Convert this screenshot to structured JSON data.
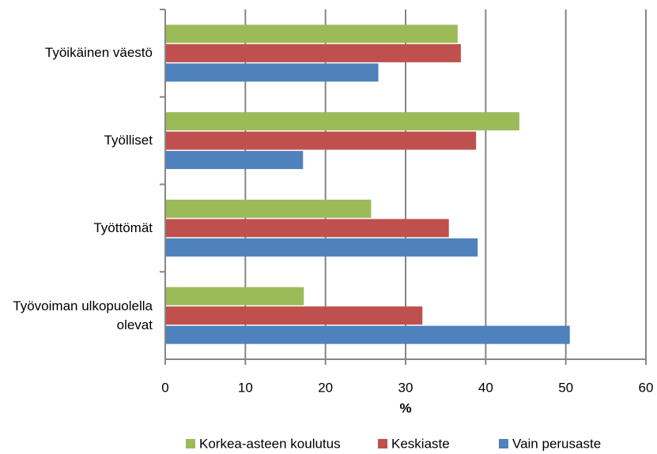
{
  "chart_data": {
    "type": "hbar",
    "categories": [
      "Työikäinen väestö",
      "Työlliset",
      "Työttömät",
      "Työvoiman ulkopuolella olevat"
    ],
    "series": [
      {
        "name": "Korkea-asteen koulutus",
        "color": "#9bbb59",
        "values": [
          36.5,
          44.2,
          25.7,
          17.3
        ]
      },
      {
        "name": "Keskiaste",
        "color": "#c0504d",
        "values": [
          36.9,
          38.8,
          35.4,
          32.1
        ]
      },
      {
        "name": "Vain perusaste",
        "color": "#4f81bd",
        "values": [
          26.6,
          17.2,
          39.0,
          50.5
        ]
      }
    ],
    "xlabel": "%",
    "xlim": [
      0,
      60
    ],
    "xticks": [
      0,
      10,
      20,
      30,
      40,
      50,
      60
    ],
    "grid": true,
    "legend": "bottom"
  }
}
